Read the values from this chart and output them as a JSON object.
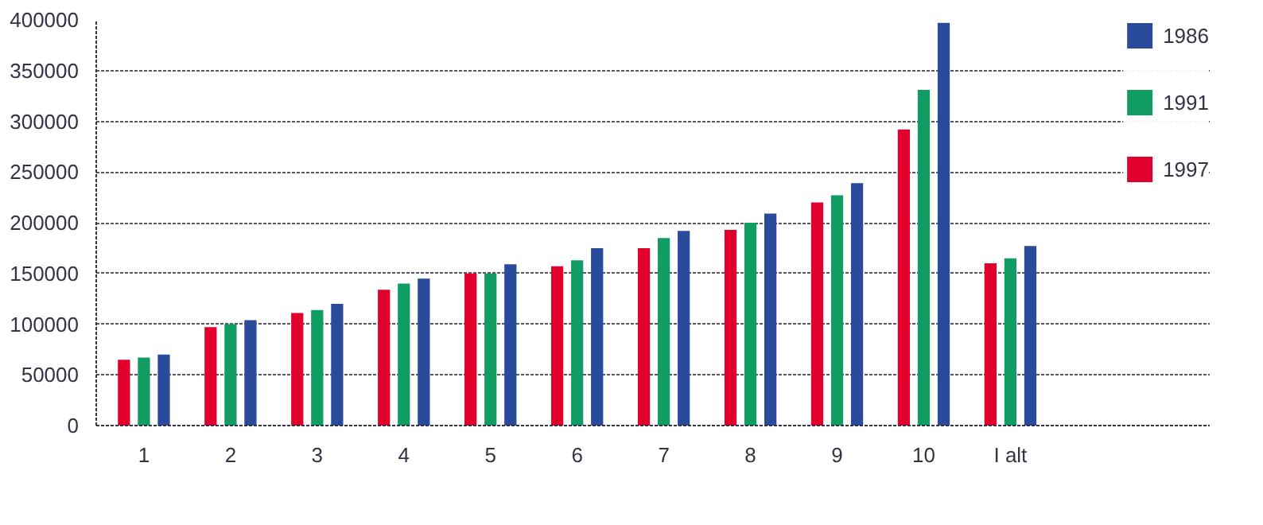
{
  "chart_data": {
    "type": "bar",
    "categories": [
      "1",
      "2",
      "3",
      "4",
      "5",
      "6",
      "7",
      "8",
      "9",
      "10",
      "I alt"
    ],
    "series": [
      {
        "name": "1997",
        "color": "#e0002b",
        "values": [
          65000,
          97000,
          111000,
          134000,
          150000,
          157000,
          175000,
          193000,
          220000,
          292000,
          160000
        ]
      },
      {
        "name": "1991",
        "color": "#109c63",
        "values": [
          67000,
          100000,
          114000,
          140000,
          150000,
          163000,
          185000,
          200000,
          227000,
          331000,
          165000
        ]
      },
      {
        "name": "1986",
        "color": "#2a4a9c",
        "values": [
          70000,
          104000,
          120000,
          145000,
          159000,
          175000,
          192000,
          209000,
          239000,
          397000,
          177000
        ]
      }
    ],
    "ylim": [
      0,
      400000
    ],
    "yticks": [
      0,
      50000,
      100000,
      150000,
      200000,
      250000,
      300000,
      350000,
      400000
    ],
    "grid": "y",
    "legend": "top right"
  }
}
